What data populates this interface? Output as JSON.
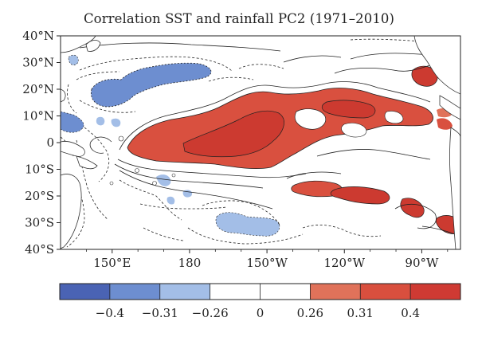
{
  "title": "Correlation SST and rainfall PC2 (1971–2010)",
  "map": {
    "lat_ticks": [
      "40°N",
      "30°N",
      "20°N",
      "10°N",
      "0",
      "10°S",
      "20°S",
      "30°S",
      "40°S"
    ],
    "lon_ticks": [
      "150°E",
      "180",
      "150°W",
      "120°W",
      "90°W"
    ],
    "lat_range": [
      -40,
      40
    ],
    "lon_range_deg_east": [
      130,
      285
    ]
  },
  "colorbar": {
    "bins": [
      {
        "color": "#4a63b4"
      },
      {
        "color": "#6d8ed0"
      },
      {
        "color": "#a3bee7"
      },
      {
        "color": "#ffffff"
      },
      {
        "color": "#ffffff"
      },
      {
        "color": "#e0725a"
      },
      {
        "color": "#d94f3e"
      },
      {
        "color": "#cf3a33"
      }
    ],
    "labels": [
      "−0.4",
      "−0.31",
      "−0.26",
      "0",
      "0.26",
      "0.31",
      "0.4"
    ]
  },
  "colors": {
    "pos_light": "#e0725a",
    "pos_mid": "#d9503f",
    "pos_dark": "#cc3a30",
    "neg_light": "#a3bee7",
    "neg_mid": "#6d8ed0",
    "neg_dark": "#4a63b4",
    "land": "#ffffff"
  }
}
